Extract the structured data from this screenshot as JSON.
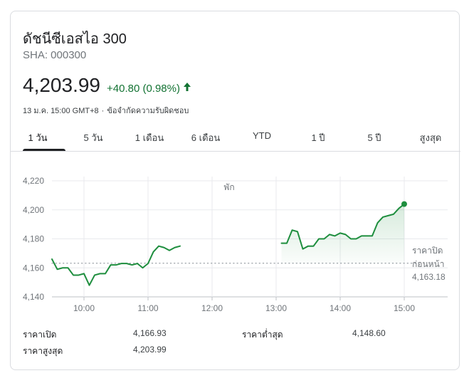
{
  "header": {
    "title": "ดัชนีซีเอสไอ 300",
    "ticker": "SHA: 000300",
    "price": "4,203.99",
    "change": "+40.80 (0.98%)",
    "arrow_icon": "arrow-up-icon",
    "timestamp": "13 ม.ค. 15:00 GMT+8",
    "separator": "·",
    "disclaimer": "ข้อจำกัดความรับผิดชอบ"
  },
  "tabs": [
    {
      "label": "1 วัน",
      "active": true
    },
    {
      "label": "5 วัน",
      "active": false
    },
    {
      "label": "1 เดือน",
      "active": false
    },
    {
      "label": "6 เดือน",
      "active": false
    },
    {
      "label": "YTD",
      "active": false
    },
    {
      "label": "1 ปี",
      "active": false
    },
    {
      "label": "5 ปี",
      "active": false
    },
    {
      "label": "สูงสุด",
      "active": false
    }
  ],
  "colors": {
    "up": "#137333",
    "line": "#1e8e3e",
    "grid": "#e8eaed",
    "text_secondary": "#70757a"
  },
  "chart_data": {
    "type": "line",
    "title": "",
    "xlabel": "",
    "ylabel": "",
    "y_ticks": [
      "4,220",
      "4,200",
      "4,180",
      "4,160",
      "4,140"
    ],
    "x_ticks": [
      "10:00",
      "11:00",
      "12:00",
      "13:00",
      "14:00",
      "15:00"
    ],
    "ylim": [
      4140,
      4220
    ],
    "xlim": [
      "09:30",
      "15:40"
    ],
    "grid": true,
    "annotation_break": "พัก",
    "previous_close": {
      "value": 4163.18,
      "label_line1": "ราคาปิด",
      "label_line2": "ก่อนหน้า",
      "label_value": "4,163.18"
    },
    "series": [
      {
        "session": "morning",
        "x": [
          "09:30",
          "09:35",
          "09:40",
          "09:45",
          "09:50",
          "09:55",
          "10:00",
          "10:05",
          "10:10",
          "10:15",
          "10:20",
          "10:25",
          "10:30",
          "10:35",
          "10:40",
          "10:45",
          "10:50",
          "10:55",
          "11:00",
          "11:05",
          "11:10",
          "11:15",
          "11:20",
          "11:25",
          "11:30"
        ],
        "values": [
          4166,
          4159,
          4160,
          4160,
          4155,
          4155,
          4156,
          4148,
          4155,
          4156,
          4156,
          4162,
          4162,
          4163,
          4163,
          4162,
          4163,
          4160,
          4163,
          4171,
          4175,
          4174,
          4172,
          4174,
          4175
        ]
      },
      {
        "session": "afternoon",
        "x": [
          "13:05",
          "13:10",
          "13:15",
          "13:20",
          "13:25",
          "13:30",
          "13:35",
          "13:40",
          "13:45",
          "13:50",
          "13:55",
          "14:00",
          "14:05",
          "14:10",
          "14:15",
          "14:20",
          "14:25",
          "14:30",
          "14:35",
          "14:40",
          "14:45",
          "14:50",
          "14:55",
          "15:00"
        ],
        "values": [
          4177,
          4177,
          4186,
          4185,
          4173,
          4175,
          4175,
          4180,
          4180,
          4183,
          4182,
          4184,
          4183,
          4180,
          4180,
          4182,
          4182,
          4182,
          4191,
          4195,
          4196,
          4197,
          4201,
          4203.99
        ]
      }
    ]
  },
  "stats": [
    {
      "label": "ราคาเปิด",
      "value": "4,166.93"
    },
    {
      "label": "ราคาต่ำสุด",
      "value": "4,148.60"
    },
    {
      "label": "ราคาสูงสุด",
      "value": "4,203.99"
    }
  ]
}
